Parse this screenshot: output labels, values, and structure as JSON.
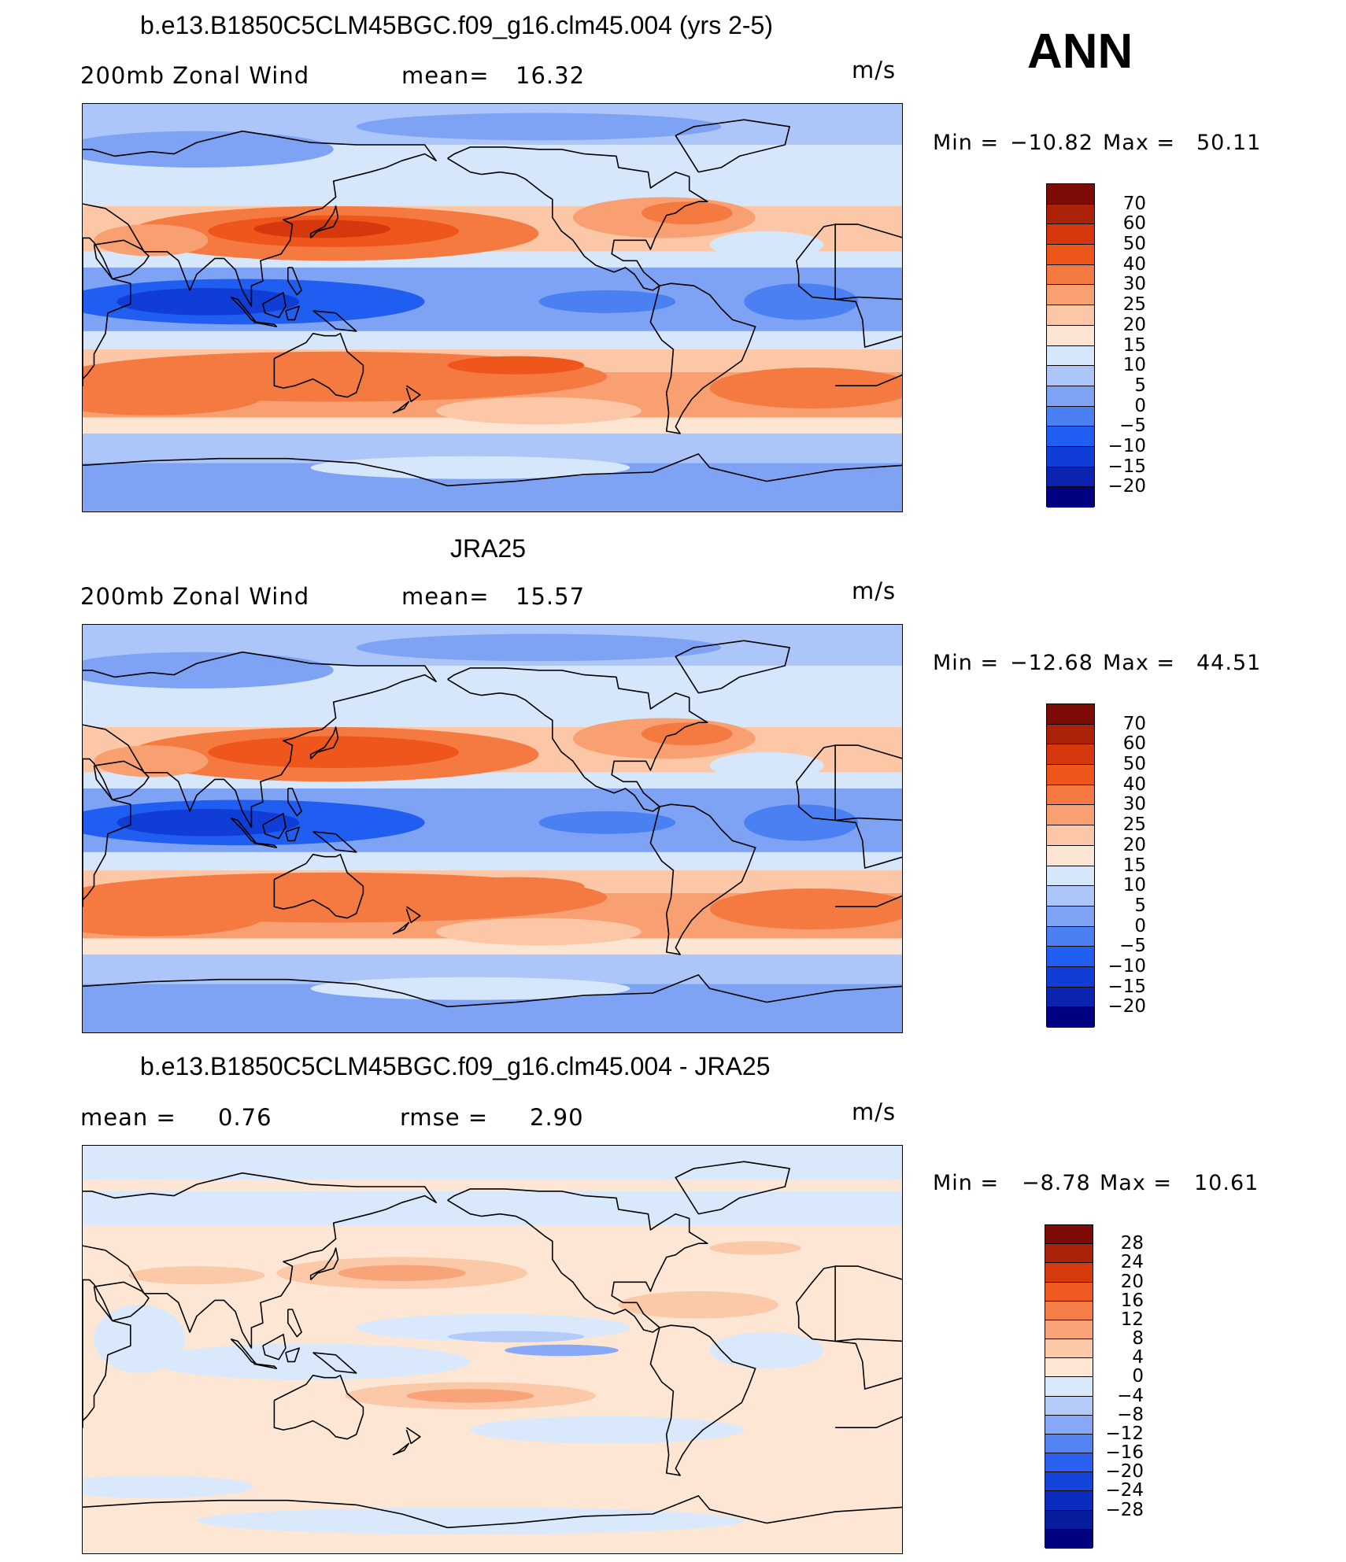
{
  "season": "ANN",
  "panels": [
    {
      "title": "b.e13.B1850C5CLM45BGC.f09_g16.clm45.004 (yrs 2-5)",
      "left_label": "200mb  Zonal  Wind",
      "stat_label": "mean=",
      "stat_value": "16.32",
      "units": "m/s",
      "min_label": "Min  =",
      "min_value": "−10.82",
      "max_label": "Max  =",
      "max_value": "50.11",
      "colorbar_levels": [
        "70",
        "60",
        "50",
        "40",
        "30",
        "25",
        "20",
        "15",
        "10",
        "5",
        "0",
        "−5",
        "−10",
        "−15",
        "−20"
      ]
    },
    {
      "title": "JRA25",
      "left_label": "200mb  Zonal  Wind",
      "stat_label": "mean=",
      "stat_value": "15.57",
      "units": "m/s",
      "min_label": "Min  =",
      "min_value": "−12.68",
      "max_label": "Max  =",
      "max_value": "44.51",
      "colorbar_levels": [
        "70",
        "60",
        "50",
        "40",
        "30",
        "25",
        "20",
        "15",
        "10",
        "5",
        "0",
        "−5",
        "−10",
        "−15",
        "−20"
      ]
    },
    {
      "title": "b.e13.B1850C5CLM45BGC.f09_g16.clm45.004 - JRA25",
      "left_label": "mean  =",
      "left_value": "0.76",
      "stat_label": "rmse  =",
      "stat_value": "2.90",
      "units": "m/s",
      "min_label": "Min  =",
      "min_value": "−8.78",
      "max_label": "Max  =",
      "max_value": "10.61",
      "colorbar_levels": [
        "28",
        "24",
        "20",
        "16",
        "12",
        "8",
        "4",
        "0",
        "−4",
        "−8",
        "−12",
        "−16",
        "−20",
        "−24",
        "−28"
      ]
    }
  ],
  "colors": {
    "abs_scale": [
      "#000080",
      "#0a24b0",
      "#0f3dd6",
      "#1f5ef0",
      "#4a80f2",
      "#7ea3f5",
      "#adc6fa",
      "#d6e6fb",
      "#fce5d3",
      "#fbc7a6",
      "#f9a072",
      "#f57a42",
      "#ef561c",
      "#d6380e",
      "#ac2208",
      "#7c0a05"
    ],
    "diff_scale": [
      "#000080",
      "#081c9e",
      "#0c2bbf",
      "#1444dc",
      "#2a60ef",
      "#5483f3",
      "#86a8f6",
      "#b4cbfa",
      "#d9e8fb",
      "#fde7d4",
      "#fbc9a8",
      "#f9a478",
      "#f57e48",
      "#ef5a20",
      "#d63a0d",
      "#ac2208",
      "#7c0a05"
    ],
    "land_outline": "#000000"
  }
}
